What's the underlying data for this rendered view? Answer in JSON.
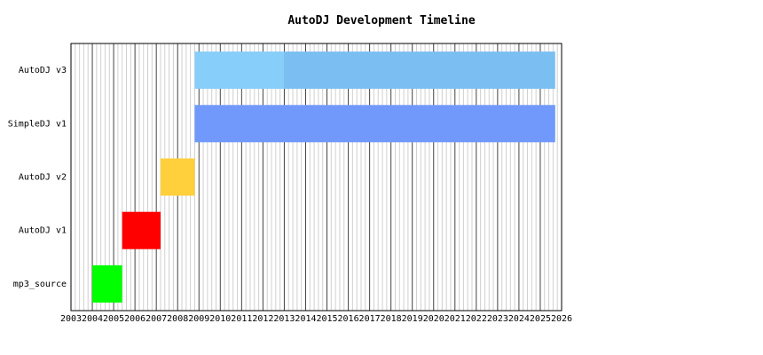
{
  "chart_data": {
    "type": "gantt",
    "title": "AutoDJ Development Timeline",
    "xlabel": "",
    "ylabel": "",
    "xlim": [
      2003,
      2026
    ],
    "grid": true,
    "x_ticks": [
      2003,
      2004,
      2005,
      2006,
      2007,
      2008,
      2009,
      2010,
      2011,
      2012,
      2013,
      2014,
      2015,
      2016,
      2017,
      2018,
      2019,
      2020,
      2021,
      2022,
      2023,
      2024,
      2025,
      2026
    ],
    "categories": [
      "AutoDJ v3",
      "SimpleDJ v1",
      "AutoDJ v2",
      "AutoDJ v1",
      "mp3_source"
    ],
    "bars": [
      {
        "label": "AutoDJ v3",
        "segments": [
          {
            "start": 2008.8,
            "end": 2013.0,
            "color": "#87cefa"
          },
          {
            "start": 2013.0,
            "end": 2025.7,
            "color": "#7bbff2"
          }
        ]
      },
      {
        "label": "SimpleDJ v1",
        "segments": [
          {
            "start": 2008.8,
            "end": 2025.7,
            "color": "#7099fb"
          }
        ]
      },
      {
        "label": "AutoDJ v2",
        "segments": [
          {
            "start": 2007.2,
            "end": 2008.8,
            "color": "#ffd03c"
          }
        ]
      },
      {
        "label": "AutoDJ v1",
        "segments": [
          {
            "start": 2005.4,
            "end": 2007.2,
            "color": "#ff0000"
          }
        ]
      },
      {
        "label": "mp3_source",
        "segments": [
          {
            "start": 2004.0,
            "end": 2005.4,
            "color": "#00ff00"
          }
        ]
      }
    ]
  }
}
